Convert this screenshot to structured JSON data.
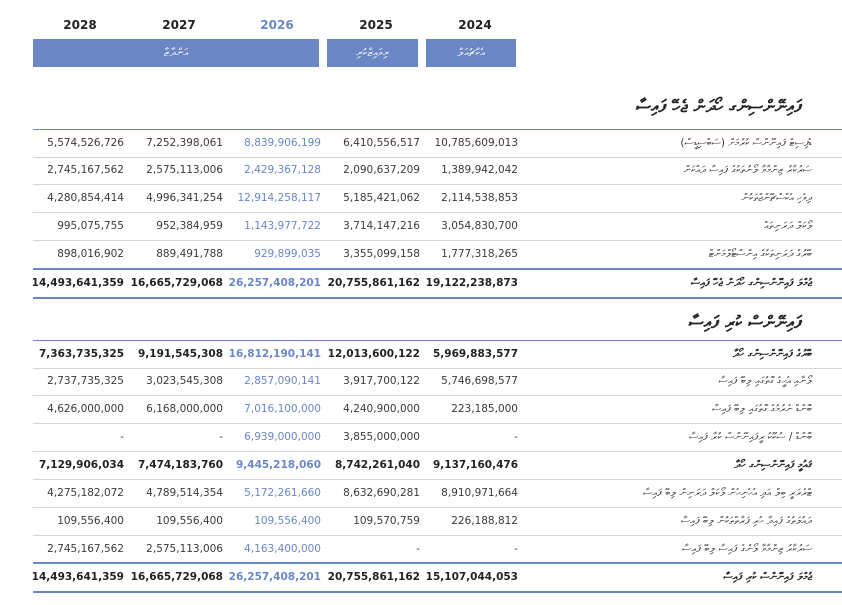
{
  "years": [
    "2028",
    "2027",
    "2026",
    "2025",
    "2024"
  ],
  "bands": {
    "projection": "އަންދާޒާ",
    "revised": "ރިވައިޒްކުރި",
    "actual": "އެކްޗުއަލް"
  },
  "section1": {
    "title": "ފައިނޭންސިންގ ހޯދަން ޖެހޭ ފައިސާ",
    "rows": [
      {
        "label": "ޑެފިސިޓް ފައިނޭންސް ކުރުމަށް (ސަބްސިޑީސް)",
        "values": [
          "5,574,526,726",
          "7,252,398,061",
          "8,839,906,199",
          "6,410,556,517",
          "10,785,609,013"
        ]
      },
      {
        "label": "ސަރުކާރު ޒިންމާވާ ލޯނުތަކުގެ ފައިސާ ދައްކަން",
        "values": [
          "2,745,167,562",
          "2,575,113,006",
          "2,429,367,128",
          "2,090,637,209",
          "1,389,942,042"
        ]
      },
      {
        "label": "ދިވެހި އެކްސްޗޭންޖްތަކުން",
        "values": [
          "4,280,854,414",
          "4,996,341,254",
          "12,914,258,117",
          "5,185,421,062",
          "2,114,538,853"
        ]
      },
      {
        "label": "ލޯކަލް ދަރަނިތައް",
        "values": [
          "995,075,755",
          "952,384,959",
          "1,143,977,722",
          "3,714,147,216",
          "3,054,830,700"
        ]
      },
      {
        "label": "ބޭރުގެ ދަރަނިތަކުގެ އިންސްޓޯލްމަންޓް",
        "values": [
          "898,016,902",
          "889,491,788",
          "929,899,035",
          "3,355,099,158",
          "1,777,318,265"
        ]
      }
    ],
    "total": {
      "label": "ޖުމްލަ ފައިނޭންސިންގ ހޯދަން ޖެހޭ ފައިސާ",
      "values": [
        "14,493,641,359",
        "16,665,729,068",
        "26,257,408,201",
        "20,755,861,162",
        "19,122,238,873"
      ]
    }
  },
  "section2": {
    "title": "ފައިނޭންސް ކުރި ފައިސާ",
    "rows": [
      {
        "label": "ބޭރުގެ ފައިނޭންސިންގ ހޯދާ",
        "values": [
          "7,363,735,325",
          "9,191,545,308",
          "16,812,190,141",
          "12,013,600,122",
          "5,969,883,577"
        ],
        "bold": true
      },
      {
        "label": "ލޯނާއި އެހީގެ ގޮތުގައި ލިބޭ ފައިސާ",
        "values": [
          "2,737,735,325",
          "3,023,545,308",
          "2,857,090,141",
          "3,917,700,122",
          "5,746,698,577"
        ]
      },
      {
        "label": "ބޮންޑް ނެރުމުގެ ގޮތުގައި ލިބޭ ފައިސާ",
        "values": [
          "4,626,000,000",
          "6,168,000,000",
          "7,016,100,000",
          "4,240,900,000",
          "223,185,000"
        ]
      },
      {
        "label": "ބޮންޑް / ސުކޫކު ރީފައިނޭންސް ކުރާ ފައިސާ",
        "values": [
          "-",
          "-",
          "6,939,000,000",
          "3,855,000,000",
          "-"
        ]
      },
      {
        "label": "ޤައުމީ ފައިނޭންސިންގ ހޯދާ",
        "values": [
          "7,129,906,034",
          "7,474,183,760",
          "9,445,218,060",
          "8,742,261,040",
          "9,137,160,476"
        ],
        "bold": true
      },
      {
        "label": "ޓްރެޜަރީ ބިލް އަދި އެހެނިހެން ލޯކަލް ދަރަނިން ލިބޭ ފައިސާ",
        "values": [
          "4,275,182,072",
          "4,789,514,354",
          "5,172,261,660",
          "8,632,690,281",
          "8,910,971,664"
        ]
      },
      {
        "label": "ދައުލަތުގެ ފައިދާ ހުރި ފަރާތްތަކުން ލިބޭ ފައިސާ",
        "values": [
          "109,556,400",
          "109,556,400",
          "109,556,400",
          "109,570,759",
          "226,188,812"
        ]
      },
      {
        "label": "ސަރުކާރު ޒިންމާވާ ލޯނުގެ ފައިސާ ލިބޭ ފައިސާ",
        "values": [
          "2,745,167,562",
          "2,575,113,006",
          "4,163,400,000",
          "-",
          "-"
        ]
      }
    ],
    "total": {
      "label": "ޖުމްލަ ފައިނޭންސް ކުރި ފައިސާ",
      "values": [
        "14,493,641,359",
        "16,665,729,068",
        "26,257,408,201",
        "20,755,861,162",
        "15,107,044,053"
      ]
    }
  }
}
